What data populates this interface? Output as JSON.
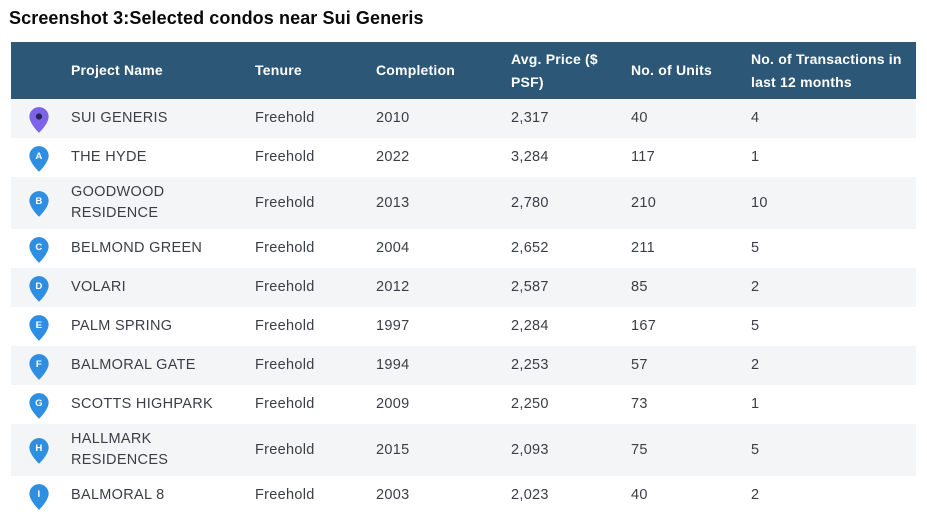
{
  "title": "Screenshot 3:Selected condos near Sui Generis",
  "colors": {
    "header_bg": "#2c5777",
    "row_alt_bg": "#f4f5f7",
    "body_text": "#3b3e45",
    "header_text": "#ffffff",
    "pin_blue": "#2e8fe2",
    "pin_purple": "#7c63e8",
    "pin_dot": "#2a2450"
  },
  "table": {
    "headers": [
      "",
      "Project Name",
      "Tenure",
      "Completion",
      "Avg. Price ($\nPSF)",
      "No. of Units",
      "No. of Transactions in\nlast 12 months"
    ],
    "rows": [
      {
        "marker_letter": "",
        "marker_color": "#7c63e8",
        "project": "SUI GENERIS",
        "tenure": "Freehold",
        "completion": "2010",
        "price": "2,317",
        "units": "40",
        "transactions": "4"
      },
      {
        "marker_letter": "A",
        "marker_color": "#2e8fe2",
        "project": "THE HYDE",
        "tenure": "Freehold",
        "completion": "2022",
        "price": "3,284",
        "units": "117",
        "transactions": "1"
      },
      {
        "marker_letter": "B",
        "marker_color": "#2e8fe2",
        "project": "GOODWOOD\nRESIDENCE",
        "tenure": "Freehold",
        "completion": "2013",
        "price": "2,780",
        "units": "210",
        "transactions": "10"
      },
      {
        "marker_letter": "C",
        "marker_color": "#2e8fe2",
        "project": "BELMOND GREEN",
        "tenure": "Freehold",
        "completion": "2004",
        "price": "2,652",
        "units": "211",
        "transactions": "5"
      },
      {
        "marker_letter": "D",
        "marker_color": "#2e8fe2",
        "project": "VOLARI",
        "tenure": "Freehold",
        "completion": "2012",
        "price": "2,587",
        "units": "85",
        "transactions": "2"
      },
      {
        "marker_letter": "E",
        "marker_color": "#2e8fe2",
        "project": "PALM SPRING",
        "tenure": "Freehold",
        "completion": "1997",
        "price": "2,284",
        "units": "167",
        "transactions": "5"
      },
      {
        "marker_letter": "F",
        "marker_color": "#2e8fe2",
        "project": "BALMORAL GATE",
        "tenure": "Freehold",
        "completion": "1994",
        "price": "2,253",
        "units": "57",
        "transactions": "2"
      },
      {
        "marker_letter": "G",
        "marker_color": "#2e8fe2",
        "project": "SCOTTS HIGHPARK",
        "tenure": "Freehold",
        "completion": "2009",
        "price": "2,250",
        "units": "73",
        "transactions": "1"
      },
      {
        "marker_letter": "H",
        "marker_color": "#2e8fe2",
        "project": "HALLMARK RESIDENCES",
        "tenure": "Freehold",
        "completion": "2015",
        "price": "2,093",
        "units": "75",
        "transactions": "5"
      },
      {
        "marker_letter": "I",
        "marker_color": "#2e8fe2",
        "project": "BALMORAL 8",
        "tenure": "Freehold",
        "completion": "2003",
        "price": "2,023",
        "units": "40",
        "transactions": "2"
      }
    ]
  }
}
